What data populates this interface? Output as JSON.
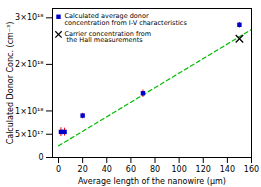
{
  "chart_data": {
    "type": "scatter",
    "xlabel": "Average length of the nanowire (μm)",
    "ylabel": "Calculated Donor Conc. (cm⁻³)",
    "xlim": [
      -5,
      160
    ],
    "ylim": [
      0,
      3.2e+18
    ],
    "xticks": [
      0,
      20,
      40,
      60,
      80,
      100,
      120,
      140,
      160
    ],
    "yticks": [
      0,
      {
        "value": 5e+17,
        "label": "5×10¹⁷"
      },
      {
        "value": 1e+18,
        "label": "1×10¹⁸"
      },
      {
        "value": 2e+18,
        "label": "2×10¹⁸"
      },
      {
        "value": 3e+18,
        "label": "3×10¹⁸"
      }
    ],
    "legend": "upper left",
    "series": [
      {
        "type": "line",
        "line_style": "dashed",
        "color": "#00BB00",
        "x": [
          0,
          160
        ],
        "values": [
          2.5e+17,
          2.75e+18
        ]
      },
      {
        "name": "Calculated average donor\nconcentration from I-V characteristics",
        "type": "scatter",
        "marker": "square",
        "color": "#0000CC",
        "x": [
          2,
          5,
          20,
          70,
          150
        ],
        "values": [
          5.5e+17,
          5.5e+17,
          9e+17,
          1.38e+18,
          2.85e+18
        ],
        "error_bars": {
          "color": "#FF0000",
          "low": [
            1e+17,
            9e+16,
            7e+16,
            9e+16,
            7e+16
          ],
          "high": [
            9e+16,
            8e+16,
            5e+16,
            7e+16,
            5e+16
          ]
        }
      },
      {
        "name": "Carrier concentration from\n the Hall measurements",
        "type": "scatter",
        "marker": "x",
        "color": "#000000",
        "x": [
          150
        ],
        "values": [
          2.55e+18
        ]
      }
    ]
  }
}
